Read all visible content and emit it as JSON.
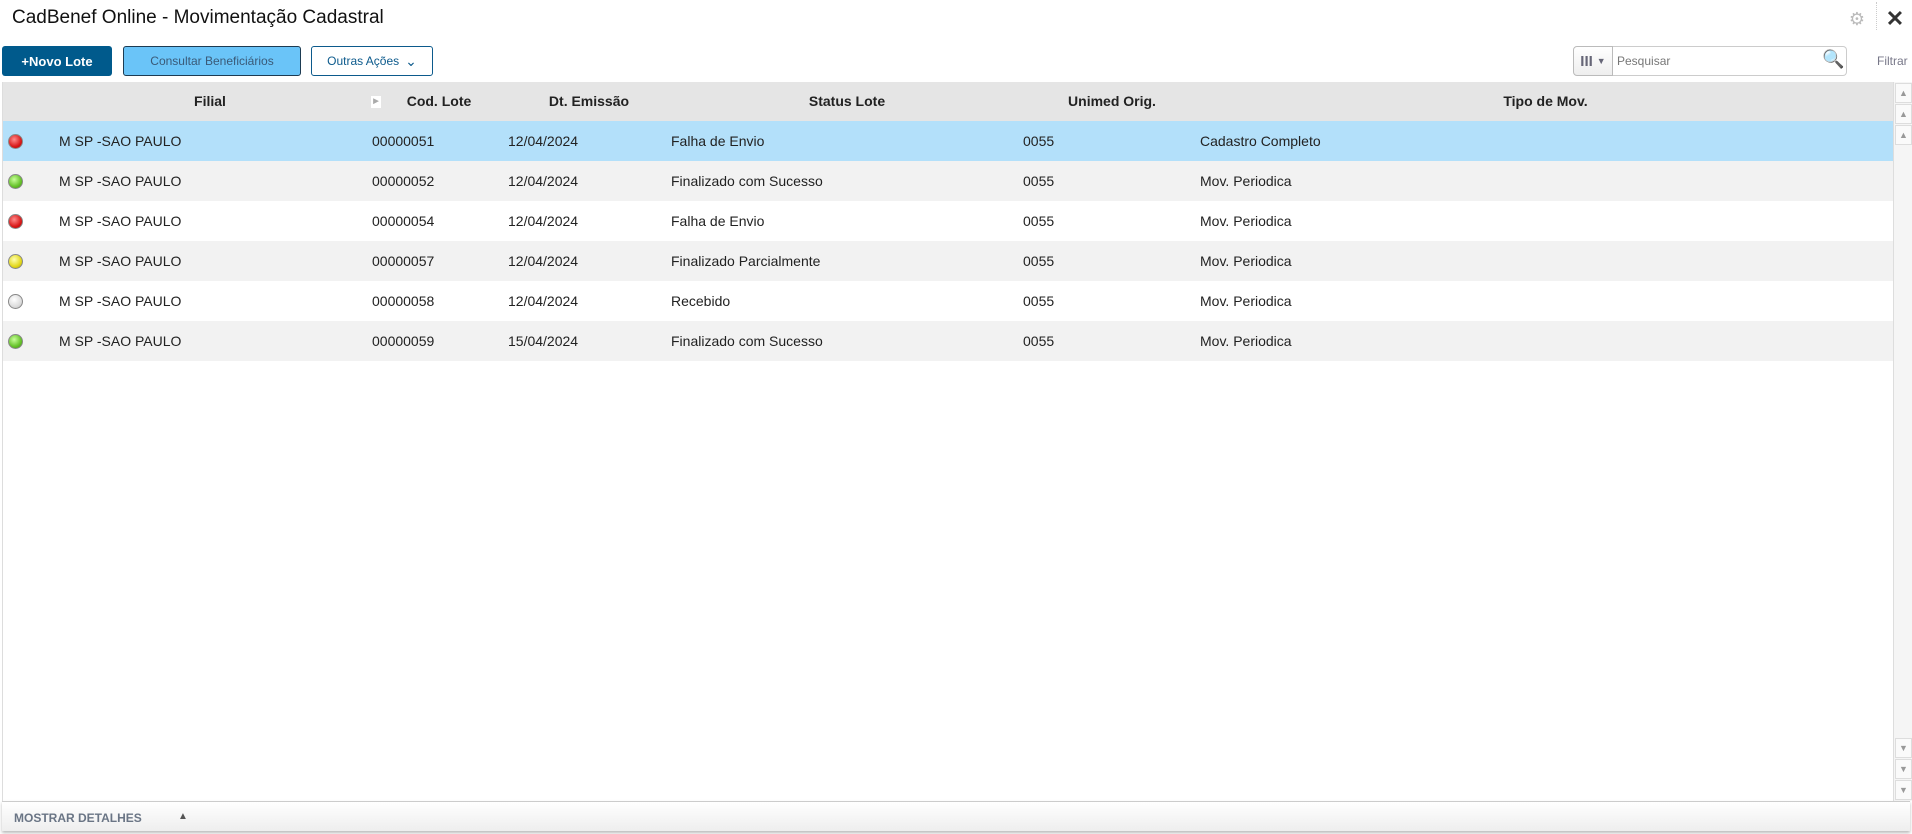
{
  "header": {
    "title": "CadBenef Online - Movimentação Cadastral",
    "gear_icon": "gear-icon",
    "close_icon": "close-icon"
  },
  "toolbar": {
    "novo_lote": "+Novo Lote",
    "consultar": "Consultar Beneficiários",
    "outras": "Outras Ações",
    "outras_icon": "chevron-down-icon",
    "search_placeholder": "Pesquisar",
    "filtrar": "Filtrar"
  },
  "colors": {
    "primary": "#005a8c",
    "secondary": "#6ac4f8",
    "selected_row": "#b3e0fa"
  },
  "table": {
    "columns": [
      "Filial",
      "Cod. Lote",
      "Dt. Emissão",
      "Status Lote",
      "Unimed Orig.",
      "Tipo de Mov."
    ],
    "rows": [
      {
        "status": "red",
        "cells": [
          "M SP -SAO PAULO",
          "00000051",
          "12/04/2024",
          "Falha de Envio",
          "0055",
          "Cadastro Completo"
        ],
        "selected": true
      },
      {
        "status": "green",
        "cells": [
          "M SP -SAO PAULO",
          "00000052",
          "12/04/2024",
          "Finalizado com Sucesso",
          "0055",
          "Mov. Periodica"
        ]
      },
      {
        "status": "red",
        "cells": [
          "M SP -SAO PAULO",
          "00000054",
          "12/04/2024",
          "Falha de Envio",
          "0055",
          "Mov. Periodica"
        ]
      },
      {
        "status": "yellow",
        "cells": [
          "M SP -SAO PAULO",
          "00000057",
          "12/04/2024",
          "Finalizado Parcialmente",
          "0055",
          "Mov. Periodica"
        ]
      },
      {
        "status": "gray",
        "cells": [
          "M SP -SAO PAULO",
          "00000058",
          "12/04/2024",
          "Recebido",
          "0055",
          "Mov. Periodica"
        ]
      },
      {
        "status": "green",
        "cells": [
          "M SP -SAO PAULO",
          "00000059",
          "15/04/2024",
          "Finalizado com Sucesso",
          "0055",
          "Mov. Periodica"
        ]
      }
    ]
  },
  "footer": {
    "mostrar": "MOSTRAR DETALHES"
  }
}
